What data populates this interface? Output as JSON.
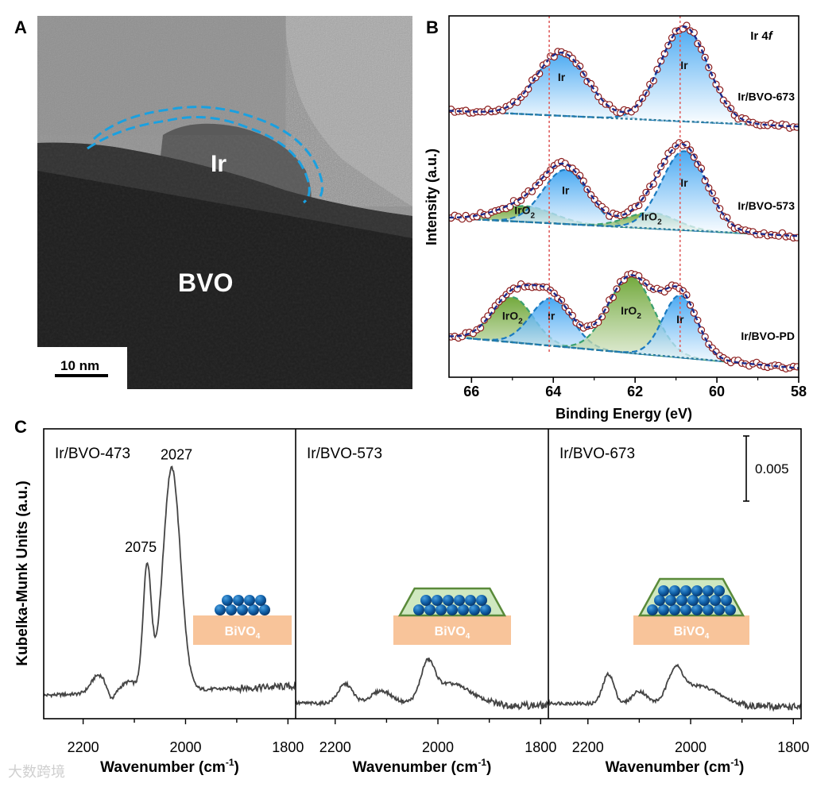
{
  "figure": {
    "panel_a": {
      "letter": "A",
      "particle_label": "Ir",
      "substrate_label": "BVO",
      "scale_bar": "10 nm"
    },
    "panel_b_letter": "B",
    "panel_c_letter": "C",
    "watermark": "大数跨境"
  },
  "chart_data": [
    {
      "type": "line",
      "id": "xps_ir4f",
      "title_main": "Ir 4",
      "title_italic": "f",
      "xlabel": "Binding Energy (eV)",
      "ylabel": "Intensity (a.u.)",
      "xlim": [
        66.55,
        58
      ],
      "ylim": [
        0,
        3.2
      ],
      "xticks": [
        66,
        64,
        62,
        60,
        58
      ],
      "reference_lines": [
        64.1,
        60.9
      ],
      "colors": {
        "Ir": "#2a9af0",
        "IrO2": "#5a9a2a",
        "envelope": "#1a2a8a",
        "data": "#8b1a1a",
        "ref": "#e06060"
      },
      "series": [
        {
          "name": "Ir/BVO-673",
          "baseline": [
            2.36,
            2.22
          ],
          "components": [
            {
              "species": "Ir",
              "label": "Ir",
              "center": 63.8,
              "height": 0.56,
              "sigma": 0.62
            },
            {
              "species": "Ir",
              "label": "Ir",
              "center": 60.8,
              "height": 0.84,
              "sigma": 0.58
            }
          ]
        },
        {
          "name": "Ir/BVO-573",
          "baseline": [
            1.41,
            1.25
          ],
          "components": [
            {
              "species": "IrO2",
              "label": "IrO",
              "label_sub": "2",
              "center": 64.7,
              "height": 0.14,
              "sigma": 0.7
            },
            {
              "species": "Ir",
              "label": "Ir",
              "center": 63.7,
              "height": 0.48,
              "sigma": 0.55
            },
            {
              "species": "IrO2",
              "label": "IrO",
              "label_sub": "2",
              "center": 61.6,
              "height": 0.14,
              "sigma": 0.6
            },
            {
              "species": "Ir",
              "label": "Ir",
              "center": 60.8,
              "height": 0.7,
              "sigma": 0.55
            }
          ]
        },
        {
          "name": "Ir/BVO-PD",
          "baseline": [
            0.36,
            0.08
          ],
          "components": [
            {
              "species": "IrO2",
              "label": "IrO",
              "label_sub": "2",
              "center": 65.0,
              "height": 0.4,
              "sigma": 0.5
            },
            {
              "species": "Ir",
              "label": "Ir",
              "center": 64.05,
              "height": 0.42,
              "sigma": 0.5
            },
            {
              "species": "IrO2",
              "label": "IrO",
              "label_sub": "2",
              "center": 62.1,
              "height": 0.68,
              "sigma": 0.55
            },
            {
              "species": "Ir",
              "label": "Ir",
              "center": 60.9,
              "height": 0.55,
              "sigma": 0.42
            }
          ]
        }
      ]
    },
    {
      "type": "line",
      "id": "drifts_co",
      "xlabel_main": "Wavenumber (cm",
      "xlabel_sup": "-1",
      "xlabel_end": ")",
      "ylabel": "Kubelka-Munk Units (a.u.)",
      "xlim": [
        2277,
        1785
      ],
      "ylim": [
        0,
        22
      ],
      "y_units": "1e-3 a.u.",
      "xticks": [
        2200,
        2000,
        1800
      ],
      "scale_bar": {
        "label": "0.005",
        "value": 5
      },
      "inset_substrate": {
        "base": "BiVO",
        "sub": "4"
      },
      "line_color": "#444444",
      "panels": [
        {
          "name": "Ir/BVO-473",
          "baseline": [
            1.8,
            2.5
          ],
          "peaks": [
            {
              "center": 2170,
              "height": 1.4,
              "sigma": 14
            },
            {
              "center": 2145,
              "height": -0.7,
              "sigma": 7
            },
            {
              "center": 2110,
              "height": 0.8,
              "sigma": 15
            },
            {
              "center": 2075,
              "height": 9.6,
              "sigma": 8
            },
            {
              "center": 2027,
              "height": 17.1,
              "sigma": 17
            }
          ],
          "annotations": [
            {
              "text": "2075",
              "x": 2075,
              "y": 12.8
            },
            {
              "text": "2027",
              "x": 2027,
              "y": 19.9
            }
          ],
          "inset_layers": 2,
          "inset_overlayer": false
        },
        {
          "name": "Ir/BVO-573",
          "baseline": [
            1.2,
            1.0
          ],
          "peaks": [
            {
              "center": 2180,
              "height": 1.5,
              "sigma": 14
            },
            {
              "center": 2110,
              "height": 1.0,
              "sigma": 20
            },
            {
              "center": 2020,
              "height": 2.6,
              "sigma": 13
            },
            {
              "center": 1975,
              "height": 1.6,
              "sigma": 40
            }
          ],
          "annotations": [],
          "inset_layers": 2,
          "inset_overlayer": true
        },
        {
          "name": "Ir/BVO-673",
          "baseline": [
            1.2,
            0.9
          ],
          "peaks": [
            {
              "center": 2160,
              "height": 2.3,
              "sigma": 11
            },
            {
              "center": 2100,
              "height": 1.0,
              "sigma": 14
            },
            {
              "center": 2030,
              "height": 2.2,
              "sigma": 14
            },
            {
              "center": 1985,
              "height": 1.5,
              "sigma": 40
            }
          ],
          "annotations": [],
          "inset_layers": 3,
          "inset_overlayer": true
        }
      ]
    }
  ]
}
